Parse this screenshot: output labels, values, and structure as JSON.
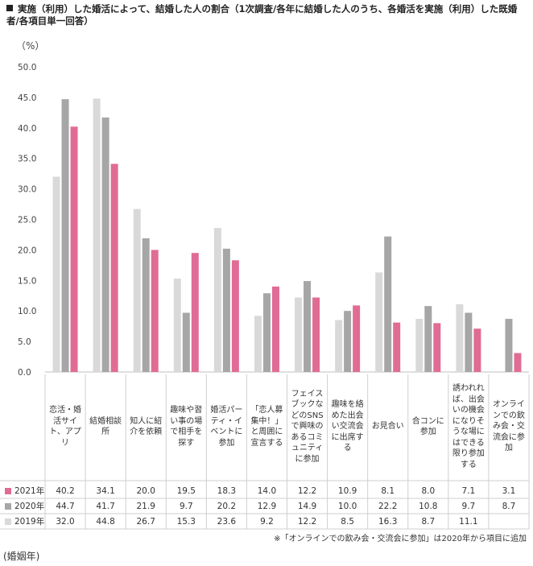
{
  "title": "実施（利用）した婚活によって、結婚した人の割合（1次調査/各年に結婚した人のうち、各婚活を実施（利用）した既婚者/各項目単一回答）",
  "unit": "（%）",
  "note": "※「オンラインでの飲み会・交流会に参加」は2020年から項目に追加",
  "era": "(婚姻年)",
  "colors": {
    "2021": "#e06c95",
    "2020": "#a6a6a6",
    "2019": "#d9d9d9",
    "grid": "#d0d0d0"
  },
  "chart_data": {
    "type": "bar",
    "title": "実施（利用）した婚活によって、結婚した人の割合（1次調査/各年に結婚した人のうち、各婚活を実施（利用）した既婚者/各項目単一回答）",
    "ylabel": "（%）",
    "ylim": [
      0,
      50
    ],
    "yticks": [
      "0.0",
      "5.0",
      "10.0",
      "15.0",
      "20.0",
      "25.0",
      "30.0",
      "35.0",
      "40.0",
      "45.0",
      "50.0"
    ],
    "grid": false,
    "legend": "table-left",
    "categories": [
      "恋活・婚活サイト、アプリ",
      "結婚相談所",
      "知人に紹介を依頼",
      "趣味や習い事の場で相手を探す",
      "婚活パーティ・イベントに参加",
      "「恋人募集中！」と周囲に宣言する",
      "フェイスブックなどのSNSで興味のあるコミュニティに参加",
      "趣味を絡めた出会い交流会に出席する",
      "お見合い",
      "合コンに参加",
      "誘われれば、出会いの機会になりそうな場にはできる限り参加する",
      "オンラインでの飲み会・交流会に参加"
    ],
    "series": [
      {
        "name": "2019年",
        "values": [
          32.0,
          44.8,
          26.7,
          15.3,
          23.6,
          9.2,
          12.2,
          8.5,
          16.3,
          8.7,
          11.1,
          null
        ],
        "labels": [
          "32.0",
          "44.8",
          "26.7",
          "15.3",
          "23.6",
          "9.2",
          "12.2",
          "8.5",
          "16.3",
          "8.7",
          "11.1",
          ""
        ]
      },
      {
        "name": "2020年",
        "values": [
          44.7,
          41.7,
          21.9,
          9.7,
          20.2,
          12.9,
          14.9,
          10.0,
          22.2,
          10.8,
          9.7,
          8.7
        ],
        "labels": [
          "44.7",
          "41.7",
          "21.9",
          "9.7",
          "20.2",
          "12.9",
          "14.9",
          "10.0",
          "22.2",
          "10.8",
          "9.7",
          "8.7"
        ]
      },
      {
        "name": "2021年",
        "values": [
          40.2,
          34.1,
          20.0,
          19.5,
          18.3,
          14.0,
          12.2,
          10.9,
          8.1,
          8.0,
          7.1,
          3.1
        ],
        "labels": [
          "40.2",
          "34.1",
          "20.0",
          "19.5",
          "18.3",
          "14.0",
          "12.2",
          "10.9",
          "8.1",
          "8.0",
          "7.1",
          "3.1"
        ]
      }
    ],
    "table_row_order": [
      "2021年",
      "2020年",
      "2019年"
    ]
  }
}
